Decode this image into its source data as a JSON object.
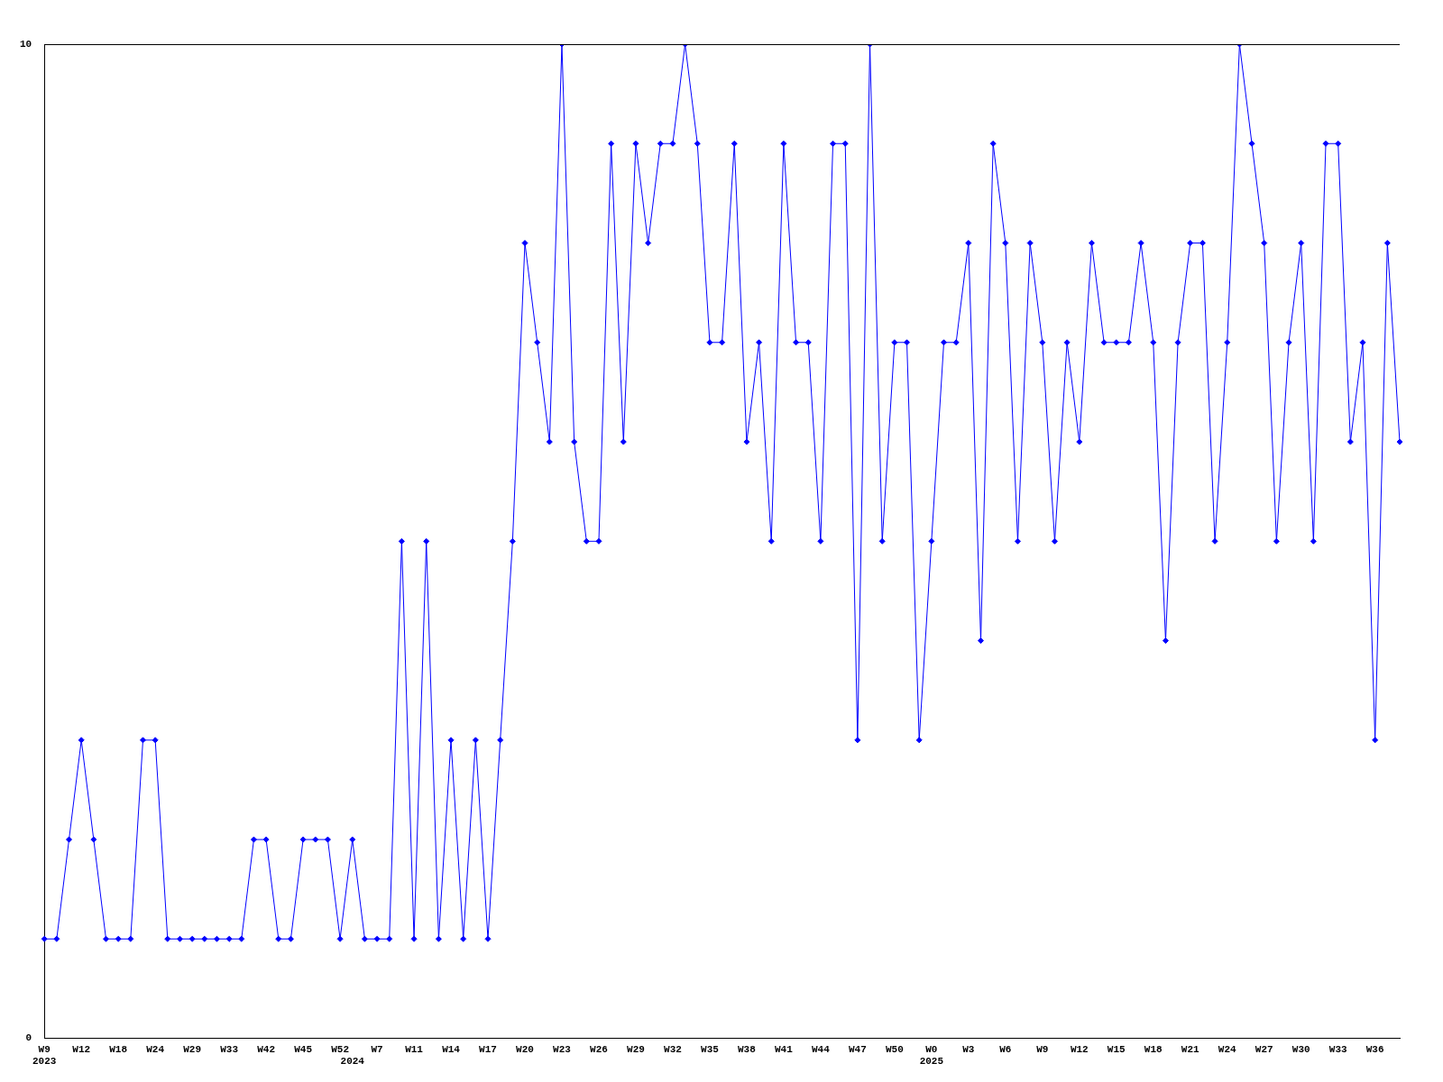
{
  "chart_data": {
    "type": "line",
    "categories": [
      "W9\n2023",
      null,
      null,
      "W12",
      null,
      null,
      "W18",
      null,
      null,
      "W24",
      null,
      null,
      "W29",
      null,
      null,
      "W33",
      null,
      null,
      "W42",
      null,
      null,
      "W45",
      null,
      null,
      "W52",
      "\n2024",
      null,
      "W7",
      null,
      null,
      "W11",
      null,
      null,
      "W14",
      null,
      null,
      "W17",
      null,
      null,
      "W20",
      null,
      null,
      "W23",
      null,
      null,
      "W26",
      null,
      null,
      "W29",
      null,
      null,
      "W32",
      null,
      null,
      "W35",
      null,
      null,
      "W38",
      null,
      null,
      "W41",
      null,
      null,
      "W44",
      null,
      null,
      "W47",
      null,
      null,
      "W50",
      null,
      null,
      "W0\n2025",
      null,
      null,
      "W3",
      null,
      null,
      "W6",
      null,
      null,
      "W9",
      null,
      null,
      "W12",
      null,
      null,
      "W15",
      null,
      null,
      "W18",
      null,
      null,
      "W21",
      null,
      null,
      "W24",
      null,
      null,
      "W27",
      null,
      null,
      "W30",
      null,
      null,
      "W33",
      null,
      null,
      "W36",
      null,
      null
    ],
    "series": [
      {
        "color": "#0000ff",
        "values": [
          1,
          1,
          2,
          3,
          2,
          1,
          1,
          1,
          3,
          3,
          1,
          1,
          1,
          1,
          1,
          1,
          1,
          2,
          2,
          1,
          1,
          2,
          2,
          2,
          1,
          2,
          1,
          1,
          1,
          5,
          1,
          5,
          1,
          3,
          1,
          3,
          1,
          3,
          5,
          8,
          7,
          6,
          10,
          6,
          5,
          5,
          9,
          6,
          9,
          8,
          9,
          9,
          10,
          9,
          7,
          7,
          9,
          6,
          7,
          5,
          9,
          7,
          7,
          5,
          9,
          9,
          3,
          10,
          5,
          7,
          7,
          3,
          5,
          7,
          7,
          8,
          4,
          9,
          8,
          5,
          8,
          7,
          5,
          7,
          6,
          8,
          7,
          7,
          7,
          8,
          7,
          4,
          7,
          8,
          8,
          5,
          7,
          10,
          9,
          8,
          5,
          7,
          8,
          5,
          9,
          9,
          6,
          7,
          3,
          8,
          6
        ]
      }
    ],
    "ylim": [
      0,
      10
    ],
    "yticks": [
      0,
      10
    ],
    "grid": false,
    "legend": false,
    "marker": "diamond",
    "line_style": "solid"
  }
}
